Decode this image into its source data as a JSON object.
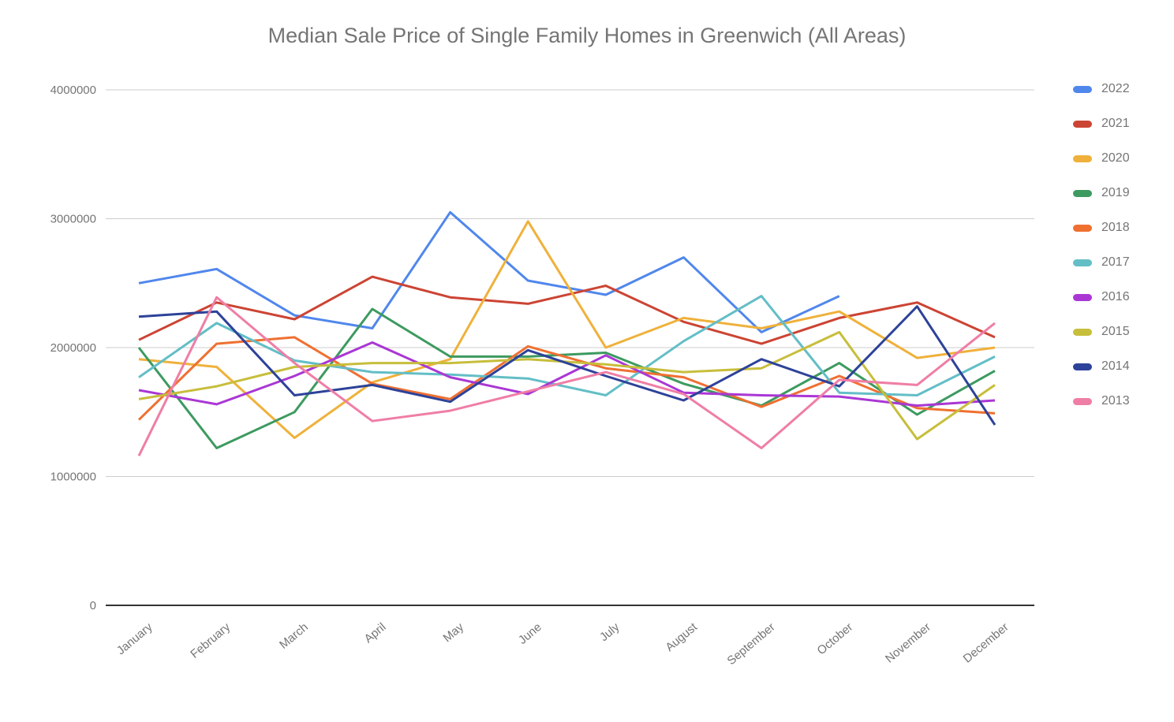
{
  "chart_data": {
    "type": "line",
    "title": "Median Sale Price of Single Family Homes in Greenwich (All Areas)",
    "xlabel": "",
    "ylabel": "",
    "x_categories": [
      "January",
      "February",
      "March",
      "April",
      "May",
      "June",
      "July",
      "August",
      "September",
      "October",
      "November",
      "December"
    ],
    "y_ticks": [
      0,
      1000000,
      2000000,
      3000000,
      4000000
    ],
    "ylim": [
      0,
      4000000
    ],
    "grid": true,
    "legend_position": "right",
    "series": [
      {
        "name": "2022",
        "color": "#5087EC",
        "values": [
          2500000,
          2610000,
          2250000,
          2150000,
          3050000,
          2520000,
          2410000,
          2700000,
          2120000,
          2400000,
          null,
          null
        ]
      },
      {
        "name": "2021",
        "color": "#CC4433",
        "values": [
          2060000,
          2350000,
          2220000,
          2550000,
          2390000,
          2340000,
          2480000,
          2200000,
          2030000,
          2230000,
          2350000,
          2080000
        ]
      },
      {
        "name": "2020",
        "color": "#EFB13B",
        "values": [
          1910000,
          1850000,
          1300000,
          1730000,
          1910000,
          2980000,
          2000000,
          2230000,
          2150000,
          2280000,
          1920000,
          2000000
        ]
      },
      {
        "name": "2019",
        "color": "#3D9A60",
        "values": [
          2000000,
          1220000,
          1500000,
          2300000,
          1930000,
          1930000,
          1960000,
          1720000,
          1550000,
          1880000,
          1480000,
          1820000
        ]
      },
      {
        "name": "2018",
        "color": "#EF7031",
        "values": [
          1440000,
          2030000,
          2080000,
          1720000,
          1600000,
          2010000,
          1840000,
          1770000,
          1540000,
          1780000,
          1530000,
          1490000
        ]
      },
      {
        "name": "2017",
        "color": "#63BEC6",
        "values": [
          1770000,
          2190000,
          1900000,
          1810000,
          1790000,
          1760000,
          1630000,
          2050000,
          2400000,
          1650000,
          1630000,
          1930000
        ]
      },
      {
        "name": "2016",
        "color": "#AA37D4",
        "values": [
          1670000,
          1560000,
          1780000,
          2040000,
          1770000,
          1640000,
          1940000,
          1650000,
          1630000,
          1620000,
          1550000,
          1590000
        ]
      },
      {
        "name": "2015",
        "color": "#C7BE3B",
        "values": [
          1600000,
          1700000,
          1850000,
          1880000,
          1880000,
          1910000,
          1870000,
          1810000,
          1840000,
          2120000,
          1290000,
          1710000
        ]
      },
      {
        "name": "2014",
        "color": "#2D4299",
        "values": [
          2240000,
          2280000,
          1630000,
          1710000,
          1580000,
          1980000,
          1780000,
          1590000,
          1910000,
          1700000,
          2320000,
          1400000
        ]
      },
      {
        "name": "2013",
        "color": "#EF7EA6",
        "values": [
          1160000,
          2390000,
          1880000,
          1430000,
          1510000,
          1660000,
          1810000,
          1640000,
          1220000,
          1750000,
          1710000,
          2190000
        ]
      }
    ]
  },
  "styles": {
    "background": "#ffffff",
    "title_color": "#757575",
    "axis_label_color": "#757575",
    "gridline_color": "#cccccc",
    "axis_line_color": "#333333"
  }
}
